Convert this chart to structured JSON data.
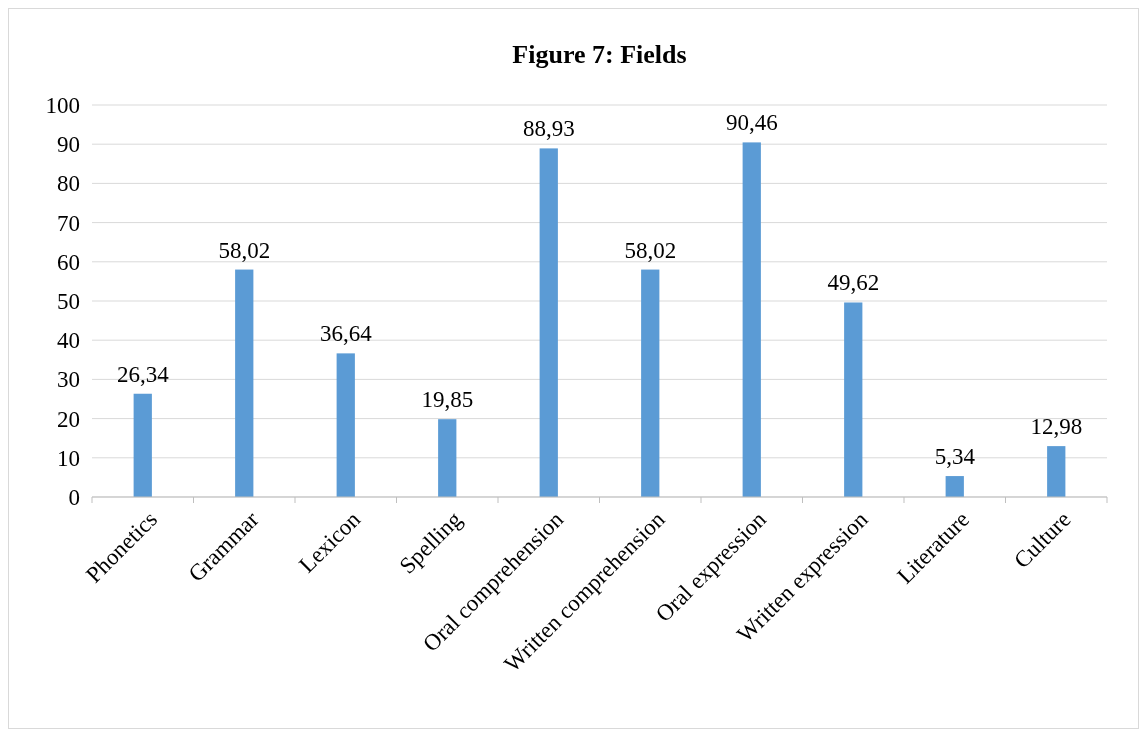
{
  "chart_data": {
    "type": "bar",
    "title": "Figure 7: Fields",
    "categories": [
      "Phonetics",
      "Grammar",
      "Lexicon",
      "Spelling",
      "Oral comprehension",
      "Written comprehension",
      "Oral expression",
      "Written expression",
      "Literature",
      "Culture"
    ],
    "values": [
      26.34,
      58.02,
      36.64,
      19.85,
      88.93,
      58.02,
      90.46,
      49.62,
      5.34,
      12.98
    ],
    "value_labels": [
      "26,34",
      "58,02",
      "36,64",
      "19,85",
      "88,93",
      "58,02",
      "90,46",
      "49,62",
      "5,34",
      "12,98"
    ],
    "color": "#5b9bd5",
    "ylim": [
      0,
      100
    ],
    "yticks": [
      0,
      10,
      20,
      30,
      40,
      50,
      60,
      70,
      80,
      90,
      100
    ],
    "grid": "y"
  }
}
